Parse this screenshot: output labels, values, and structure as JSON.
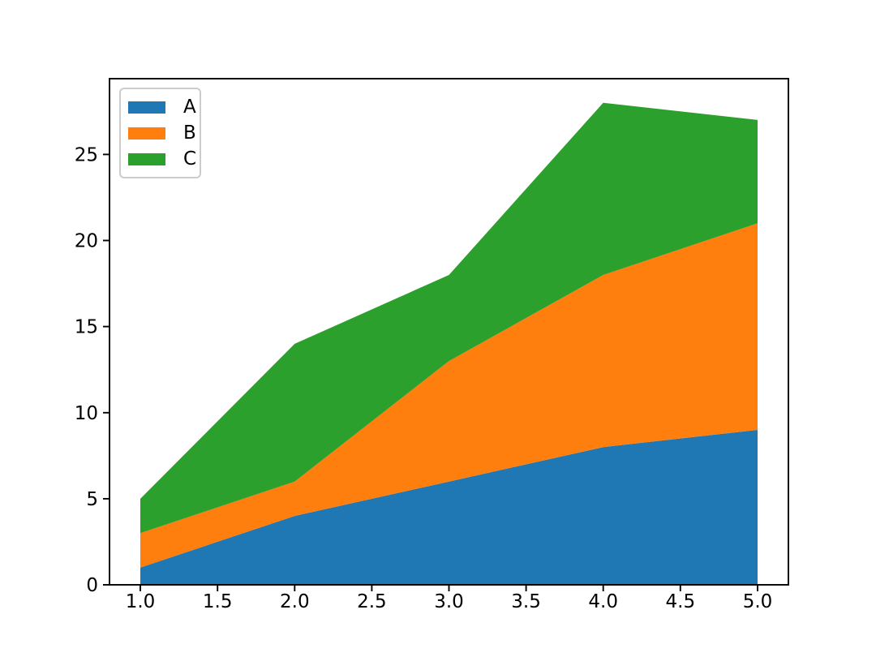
{
  "chart_data": {
    "type": "area",
    "stacked": true,
    "title": "",
    "xlabel": "",
    "ylabel": "",
    "background": "#ffffff",
    "grid": false,
    "x": [
      1,
      2,
      3,
      4,
      5
    ],
    "series": [
      {
        "name": "A",
        "color": "#1f77b4",
        "values": [
          1,
          4,
          6,
          8,
          9
        ],
        "stacked_top": [
          1,
          4,
          6,
          8,
          9
        ]
      },
      {
        "name": "B",
        "color": "#ff7f0e",
        "values": [
          2,
          2,
          7,
          10,
          12
        ],
        "stacked_top": [
          3,
          6,
          13,
          18,
          21
        ]
      },
      {
        "name": "C",
        "color": "#2ca02c",
        "values": [
          2,
          8,
          5,
          10,
          6
        ],
        "stacked_top": [
          5,
          14,
          18,
          28,
          27
        ]
      }
    ],
    "xlim": [
      0.8,
      5.2
    ],
    "ylim": [
      0,
      29.4
    ],
    "xticks": {
      "values": [
        1.0,
        1.5,
        2.0,
        2.5,
        3.0,
        3.5,
        4.0,
        4.5,
        5.0
      ],
      "labels": [
        "1.0",
        "1.5",
        "2.0",
        "2.5",
        "3.0",
        "3.5",
        "4.0",
        "4.5",
        "5.0"
      ]
    },
    "yticks": {
      "values": [
        0,
        5,
        10,
        15,
        20,
        25
      ],
      "labels": [
        "0",
        "5",
        "10",
        "15",
        "20",
        "25"
      ]
    },
    "legend": {
      "position": "upper left",
      "entries": [
        "A",
        "B",
        "C"
      ],
      "border_color": "#cccccc"
    },
    "axis_color": "#000000",
    "tick_label_color": "#000000"
  }
}
